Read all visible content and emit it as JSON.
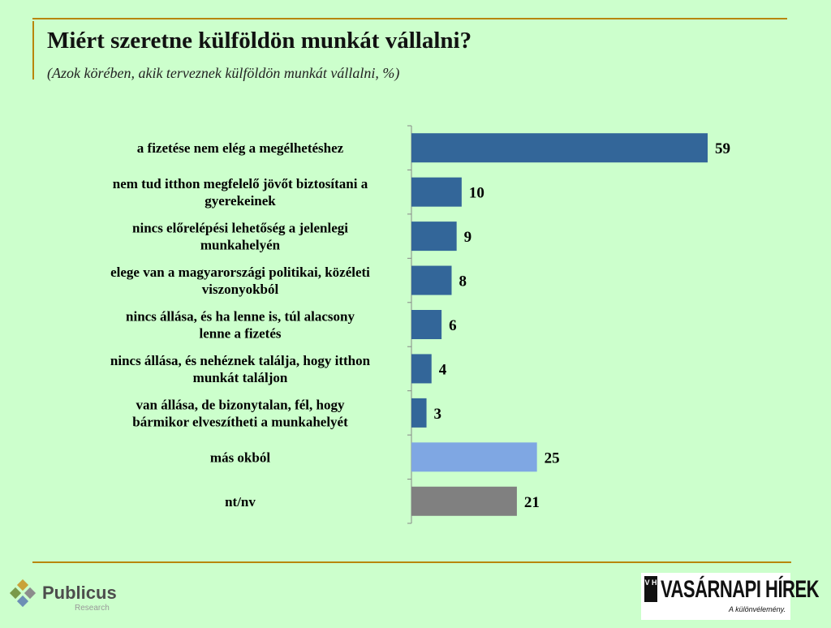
{
  "title": "Miért szeretne külföldön munkát vállalni?",
  "subtitle": "(Azok körében, akik terveznek külföldön munkát vállalni, %)",
  "colors": {
    "background": "#ccffcc",
    "accent_line": "#b8860b",
    "bar_primary": "#336699",
    "bar_other": "#7fa7e3",
    "bar_nt": "#808080"
  },
  "chart_data": {
    "type": "bar",
    "orientation": "horizontal",
    "title": "Miért szeretne külföldön munkát vállalni?",
    "subtitle": "(Azok körében, akik terveznek külföldön munkát vállalni, %)",
    "xlabel": "",
    "ylabel": "",
    "xlim": [
      0,
      60
    ],
    "grid": false,
    "categories": [
      [
        "a fizetése nem elég a megélhetéshez"
      ],
      [
        "nem tud itthon megfelelő jövőt biztosítani a",
        "gyerekeinek"
      ],
      [
        "nincs előrelépési lehetőség a jelenlegi",
        "munkahelyén"
      ],
      [
        "elege van a magyarországi politikai, közéleti",
        "viszonyokból"
      ],
      [
        "nincs állása, és ha lenne is, túl alacsony",
        "lenne a fizetés"
      ],
      [
        "nincs állása, és nehéznek találja, hogy itthon",
        "munkát találjon"
      ],
      [
        "van állása, de bizonytalan, fél, hogy",
        "bármikor elveszítheti a munkahelyét"
      ],
      [
        "más okból"
      ],
      [
        "nt/nv"
      ]
    ],
    "values": [
      59,
      10,
      9,
      8,
      6,
      4,
      3,
      25,
      21
    ],
    "bar_colors": [
      "#336699",
      "#336699",
      "#336699",
      "#336699",
      "#336699",
      "#336699",
      "#336699",
      "#7fa7e3",
      "#808080"
    ]
  },
  "logos": {
    "publicus_name": "Publicus",
    "publicus_sub": "Research",
    "vh_mark": "V H",
    "vh_name": "VASÁRNAPI HÍREK",
    "vh_slogan": "A különvélemény."
  }
}
